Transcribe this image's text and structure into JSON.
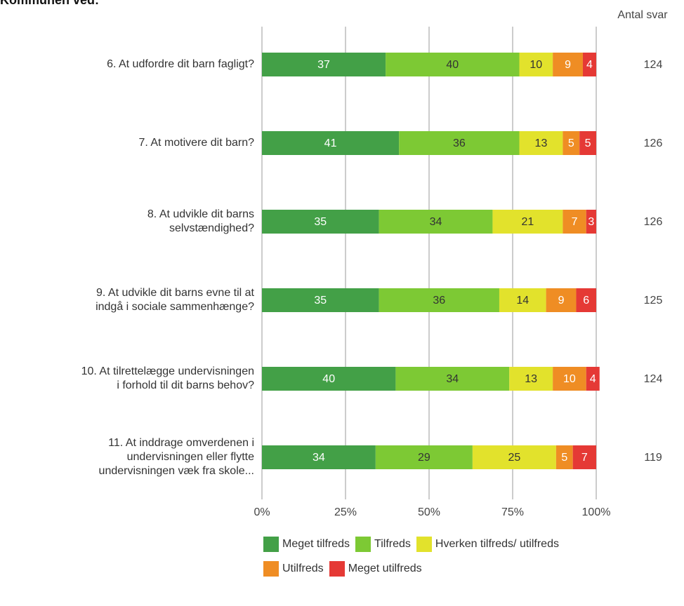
{
  "chart_data": {
    "type": "stacked_bar_horizontal",
    "title": "Kommunen ved:",
    "categories": [
      "6. At udfordre dit barn fagligt?",
      "7. At motivere dit barn?",
      "8. At udvikle dit barns\nselvstændighed?",
      "9. At udvikle dit barns evne til at\nindgå i sociale sammenhænge?",
      "10. At tilrettelægge undervisningen\ni forhold til dit barns behov?",
      "11. At inddrage omverdenen i\nundervisningen eller flytte\nundervisningen væk fra skole..."
    ],
    "series": [
      {
        "name": "Meget tilfreds",
        "color": "#43a047",
        "label_color": "#ffffff",
        "values": [
          37,
          41,
          35,
          35,
          40,
          34
        ]
      },
      {
        "name": "Tilfreds",
        "color": "#7dc934",
        "label_color": "#333333",
        "values": [
          40,
          36,
          34,
          36,
          34,
          29
        ]
      },
      {
        "name": "Hverken tilfreds/ utilfreds",
        "color": "#e2e22c",
        "label_color": "#333333",
        "values": [
          10,
          13,
          21,
          14,
          13,
          25
        ]
      },
      {
        "name": "Utilfreds",
        "color": "#ef8d24",
        "label_color": "#ffffff",
        "values": [
          9,
          5,
          7,
          9,
          10,
          5
        ]
      },
      {
        "name": "Meget utilfreds",
        "color": "#e53935",
        "label_color": "#ffffff",
        "values": [
          4,
          5,
          3,
          6,
          4,
          7
        ]
      }
    ],
    "xlim": [
      0,
      100
    ],
    "xticks": [
      {
        "value": 0,
        "label": "0%"
      },
      {
        "value": 25,
        "label": "25%"
      },
      {
        "value": 50,
        "label": "50%"
      },
      {
        "value": 75,
        "label": "75%"
      },
      {
        "value": 100,
        "label": "100%"
      }
    ],
    "grid": true,
    "count_label": "Antal svar",
    "counts": [
      124,
      126,
      126,
      125,
      124,
      119
    ]
  }
}
